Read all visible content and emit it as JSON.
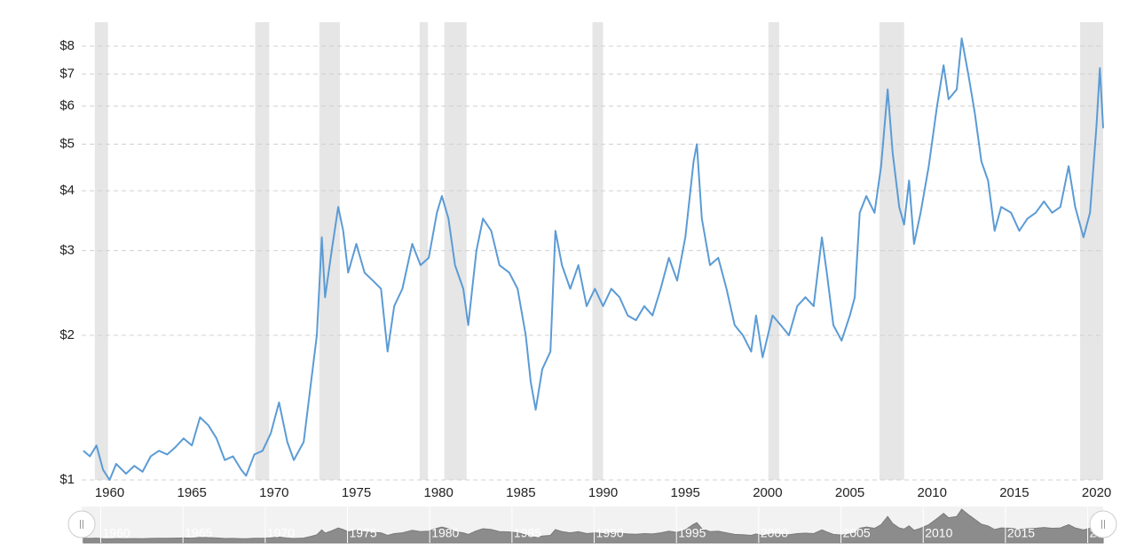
{
  "chart_data": {
    "type": "line",
    "log_y": true,
    "grid": true,
    "color": "#5b9bd5",
    "band_color": "#e6e6e6",
    "xlim": [
      1958.3,
      2020.4
    ],
    "ylim": [
      1,
      8.6
    ],
    "xticks": [
      1960,
      1965,
      1970,
      1975,
      1980,
      1985,
      1990,
      1995,
      2000,
      2005,
      2010,
      2015,
      2020
    ],
    "yticks": [
      {
        "value": 1,
        "label": "$1"
      },
      {
        "value": 2,
        "label": "$2"
      },
      {
        "value": 3,
        "label": "$3"
      },
      {
        "value": 4,
        "label": "$4"
      },
      {
        "value": 5,
        "label": "$5"
      },
      {
        "value": 6,
        "label": "$6"
      },
      {
        "value": 7,
        "label": "$7"
      },
      {
        "value": 8,
        "label": "$8"
      }
    ],
    "recessions": [
      [
        1959.1,
        1959.9
      ],
      [
        1968.85,
        1969.7
      ],
      [
        1972.75,
        1974.0
      ],
      [
        1978.85,
        1979.35
      ],
      [
        1980.35,
        1981.7
      ],
      [
        1989.35,
        1990.0
      ],
      [
        2000.05,
        2000.7
      ],
      [
        2006.8,
        2008.3
      ],
      [
        2019.0,
        2020.4
      ]
    ],
    "x": [
      1958.4,
      1958.8,
      1959.2,
      1959.6,
      1960.0,
      1960.4,
      1961.0,
      1961.5,
      1962.0,
      1962.5,
      1963.0,
      1963.5,
      1964.0,
      1964.5,
      1965.0,
      1965.5,
      1966.0,
      1966.5,
      1967.0,
      1967.5,
      1968.0,
      1968.3,
      1968.8,
      1969.3,
      1969.8,
      1970.3,
      1970.8,
      1971.2,
      1971.8,
      1972.2,
      1972.6,
      1972.9,
      1973.1,
      1973.5,
      1973.9,
      1974.2,
      1974.5,
      1975.0,
      1975.5,
      1976.0,
      1976.5,
      1976.9,
      1977.3,
      1977.8,
      1978.4,
      1978.9,
      1979.4,
      1979.9,
      1980.2,
      1980.6,
      1981.0,
      1981.5,
      1981.8,
      1982.3,
      1982.7,
      1983.2,
      1983.7,
      1984.3,
      1984.8,
      1985.3,
      1985.6,
      1985.9,
      1986.3,
      1986.8,
      1987.1,
      1987.5,
      1988.0,
      1988.5,
      1989.0,
      1989.5,
      1990.0,
      1990.5,
      1991.0,
      1991.5,
      1992.0,
      1992.5,
      1993.0,
      1993.5,
      1994.0,
      1994.5,
      1995.0,
      1995.5,
      1995.7,
      1996.0,
      1996.5,
      1997.0,
      1997.5,
      1998.0,
      1998.5,
      1999.0,
      1999.3,
      1999.7,
      2000.3,
      2000.8,
      2001.3,
      2001.8,
      2002.3,
      2002.8,
      2003.3,
      2003.6,
      2004.0,
      2004.5,
      2005.0,
      2005.3,
      2005.6,
      2006.0,
      2006.5,
      2006.9,
      2007.3,
      2007.6,
      2008.0,
      2008.3,
      2008.6,
      2008.9,
      2009.3,
      2009.8,
      2010.3,
      2010.7,
      2011.0,
      2011.5,
      2011.8,
      2012.2,
      2012.6,
      2013.0,
      2013.4,
      2013.8,
      2014.2,
      2014.8,
      2015.3,
      2015.8,
      2016.3,
      2016.8,
      2017.3,
      2017.8,
      2018.3,
      2018.7,
      2019.2,
      2019.6,
      2020.0,
      2020.2,
      2020.4
    ],
    "values": [
      1.15,
      1.12,
      1.18,
      1.05,
      1.0,
      1.08,
      1.03,
      1.07,
      1.04,
      1.12,
      1.15,
      1.13,
      1.17,
      1.22,
      1.18,
      1.35,
      1.3,
      1.22,
      1.1,
      1.12,
      1.05,
      1.02,
      1.13,
      1.15,
      1.25,
      1.45,
      1.2,
      1.1,
      1.2,
      1.55,
      2.0,
      3.2,
      2.4,
      3.0,
      3.7,
      3.3,
      2.7,
      3.1,
      2.7,
      2.6,
      2.5,
      1.85,
      2.3,
      2.5,
      3.1,
      2.8,
      2.9,
      3.6,
      3.9,
      3.5,
      2.8,
      2.5,
      2.1,
      3.0,
      3.5,
      3.3,
      2.8,
      2.7,
      2.5,
      2.0,
      1.6,
      1.4,
      1.7,
      1.85,
      3.3,
      2.8,
      2.5,
      2.8,
      2.3,
      2.5,
      2.3,
      2.5,
      2.4,
      2.2,
      2.15,
      2.3,
      2.2,
      2.5,
      2.9,
      2.6,
      3.2,
      4.6,
      5.0,
      3.5,
      2.8,
      2.9,
      2.5,
      2.1,
      2.0,
      1.85,
      2.2,
      1.8,
      2.2,
      2.1,
      2.0,
      2.3,
      2.4,
      2.3,
      3.2,
      2.7,
      2.1,
      1.95,
      2.2,
      2.4,
      3.6,
      3.9,
      3.6,
      4.5,
      6.5,
      4.8,
      3.7,
      3.4,
      4.2,
      3.1,
      3.6,
      4.5,
      6.0,
      7.3,
      6.2,
      6.5,
      8.3,
      7.0,
      5.8,
      4.6,
      4.2,
      3.3,
      3.7,
      3.6,
      3.3,
      3.5,
      3.6,
      3.8,
      3.6,
      3.7,
      4.5,
      3.7,
      3.2,
      3.6,
      5.5,
      7.2,
      5.4
    ]
  }
}
